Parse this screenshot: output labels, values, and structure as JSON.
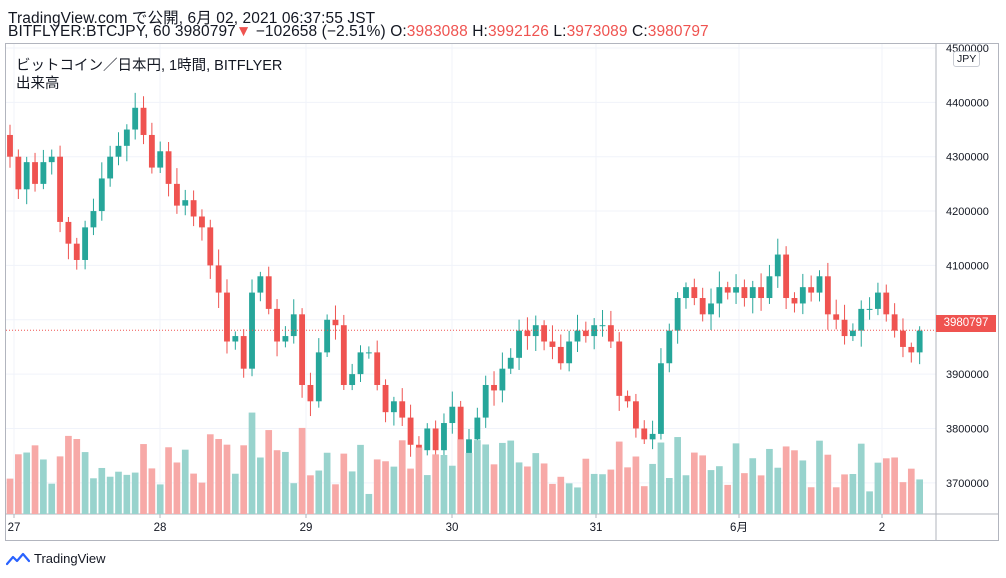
{
  "header": {
    "line1": "TradingView.com で公開, 6月 02, 2021 06:37:55 JST",
    "symbol": "BITFLYER:BTCJPY, 60",
    "last": "3980797",
    "change_arrow": "▼",
    "change": "−102658 (−2.51%)",
    "o_label": "O:",
    "o": "3983088",
    "h_label": "H:",
    "h": "3992126",
    "l_label": "L:",
    "l": "3973089",
    "c_label": "C:",
    "c": "3980797"
  },
  "legend": {
    "series": "ビットコイン／日本円, 1時間, BITFLYER",
    "volume": "出来高"
  },
  "axis": {
    "currency": "JPY",
    "price_ticks": [
      "4500000",
      "4400000",
      "4300000",
      "4200000",
      "4100000",
      "4000000",
      "3900000",
      "3800000",
      "3700000"
    ],
    "last_price_tag": "3980797",
    "date_ticks": [
      "27",
      "28",
      "29",
      "30",
      "31",
      "6月",
      "2"
    ]
  },
  "footer": {
    "brand": "TradingView"
  },
  "colors": {
    "up": "#26a69a",
    "down": "#ef5350",
    "up_vol": "#98d3cd",
    "down_vol": "#f7a9a7",
    "grid": "#f0f3fa"
  },
  "chart_data": {
    "type": "candlestick",
    "interval": "1h",
    "y_range": [
      3650000,
      4500000
    ],
    "price_ticks": [
      4500000,
      4400000,
      4300000,
      4200000,
      4100000,
      4000000,
      3900000,
      3800000,
      3700000
    ],
    "x_labels": [
      "27",
      "28",
      "29",
      "30",
      "31",
      "6月",
      "2"
    ],
    "last_price": 3980797,
    "close_path": [
      4300000,
      4240000,
      4290000,
      4250000,
      4290000,
      4300000,
      4180000,
      4140000,
      4110000,
      4170000,
      4200000,
      4260000,
      4300000,
      4320000,
      4350000,
      4390000,
      4340000,
      4280000,
      4310000,
      4250000,
      4210000,
      4220000,
      4190000,
      4170000,
      4100000,
      4050000,
      3960000,
      3970000,
      3910000,
      4050000,
      4080000,
      4020000,
      3960000,
      3970000,
      4010000,
      3880000,
      3850000,
      3940000,
      4000000,
      3990000,
      3880000,
      3900000,
      3940000,
      3940000,
      3880000,
      3830000,
      3850000,
      3820000,
      3770000,
      3760000,
      3800000,
      3760000,
      3810000,
      3840000,
      3750000,
      3780000,
      3820000,
      3880000,
      3870000,
      3910000,
      3930000,
      3980000,
      3970000,
      3990000,
      3960000,
      3950000,
      3920000,
      3960000,
      3980000,
      3970000,
      3990000,
      3990000,
      3960000,
      3860000,
      3850000,
      3800000,
      3780000,
      3790000,
      3920000,
      3980000,
      4040000,
      4060000,
      4040000,
      4010000,
      4030000,
      4060000,
      4050000,
      4060000,
      4040000,
      4060000,
      4040000,
      4080000,
      4120000,
      4040000,
      4030000,
      4060000,
      4050000,
      4080000,
      4010000,
      4000000,
      3970000,
      3980000,
      4020000,
      4020000,
      4050000,
      4010000,
      3980000,
      3950000,
      3940000,
      3980000
    ],
    "volume_scale": [
      0,
      1
    ]
  }
}
